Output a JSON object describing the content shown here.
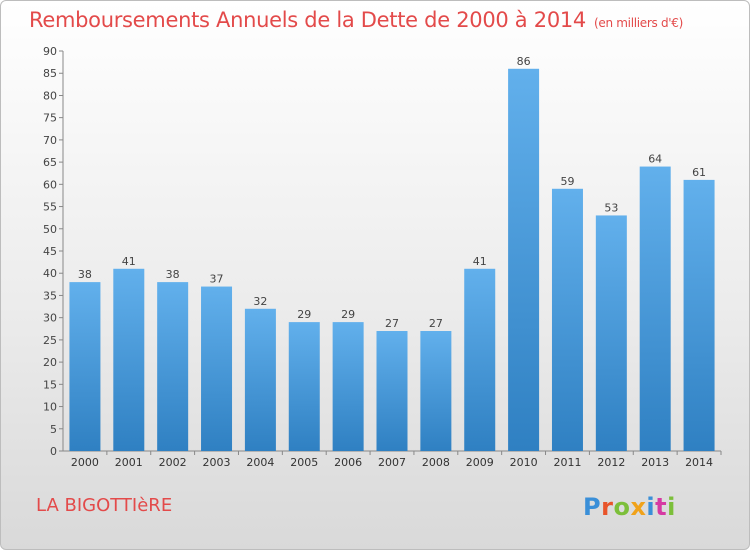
{
  "colors": {
    "title": "#e34a4a",
    "bar_top": "#62b0ec",
    "bar_bottom": "#2f80c2"
  },
  "title": "Remboursements Annuels de la Dette de 2000 à 2014",
  "subtitle": "(en milliers d'€)",
  "commune": "LA BIGOTTIèRE",
  "brand": {
    "text": "Proxiti",
    "letter_colors": [
      "#3a8fd8",
      "#e8542a",
      "#7cbf3a",
      "#f0a21a",
      "#3a8fd8",
      "#d63aa3",
      "#7cbf3a"
    ]
  },
  "chart_data": {
    "type": "bar",
    "categories": [
      "2000",
      "2001",
      "2002",
      "2003",
      "2004",
      "2005",
      "2006",
      "2007",
      "2008",
      "2009",
      "2010",
      "2011",
      "2012",
      "2013",
      "2014"
    ],
    "values": [
      38,
      41,
      38,
      37,
      32,
      29,
      29,
      27,
      27,
      41,
      86,
      59,
      53,
      64,
      61
    ],
    "ylim": [
      0,
      90
    ],
    "ytick_step": 5,
    "grid": false
  }
}
